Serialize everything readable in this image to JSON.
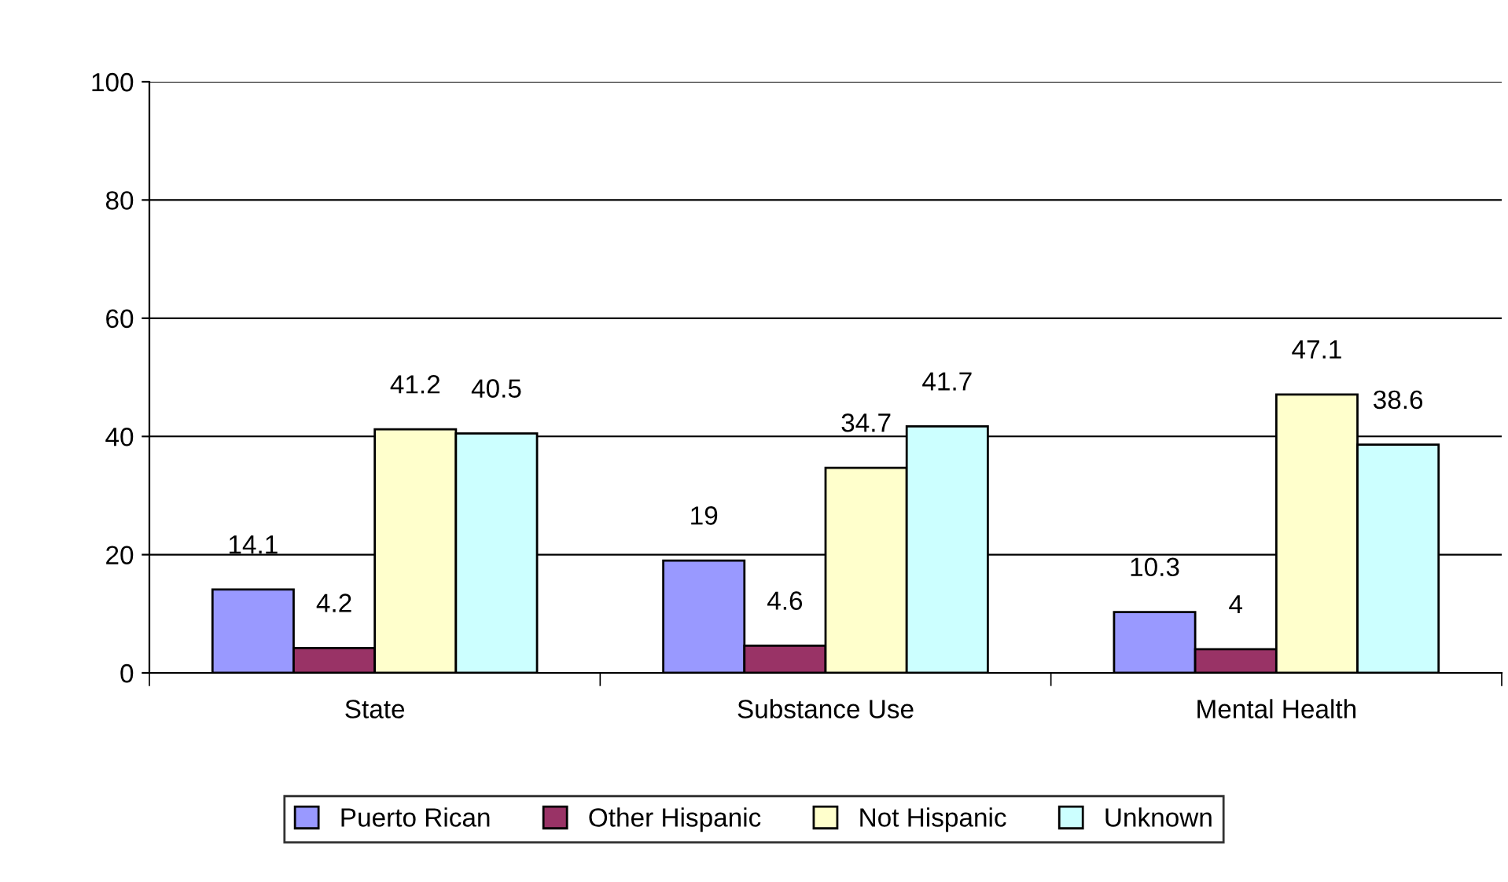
{
  "chart_data": {
    "type": "bar",
    "categories": [
      "State",
      "Substance Use",
      "Mental Health"
    ],
    "series": [
      {
        "name": "Puerto Rican",
        "color": "#9999ff",
        "values": [
          14.1,
          19,
          10.3
        ]
      },
      {
        "name": "Other Hispanic",
        "color": "#993366",
        "values": [
          4.2,
          4.6,
          4
        ]
      },
      {
        "name": "Not Hispanic",
        "color": "#ffffcc",
        "values": [
          41.2,
          34.7,
          47.1
        ]
      },
      {
        "name": "Unknown",
        "color": "#ccffff",
        "values": [
          40.5,
          41.7,
          38.6
        ]
      }
    ],
    "ylim": [
      0,
      100
    ],
    "yticks": [
      0,
      20,
      40,
      60,
      80,
      100
    ],
    "grid": "y",
    "legend": "bottom",
    "data_labels": true
  }
}
